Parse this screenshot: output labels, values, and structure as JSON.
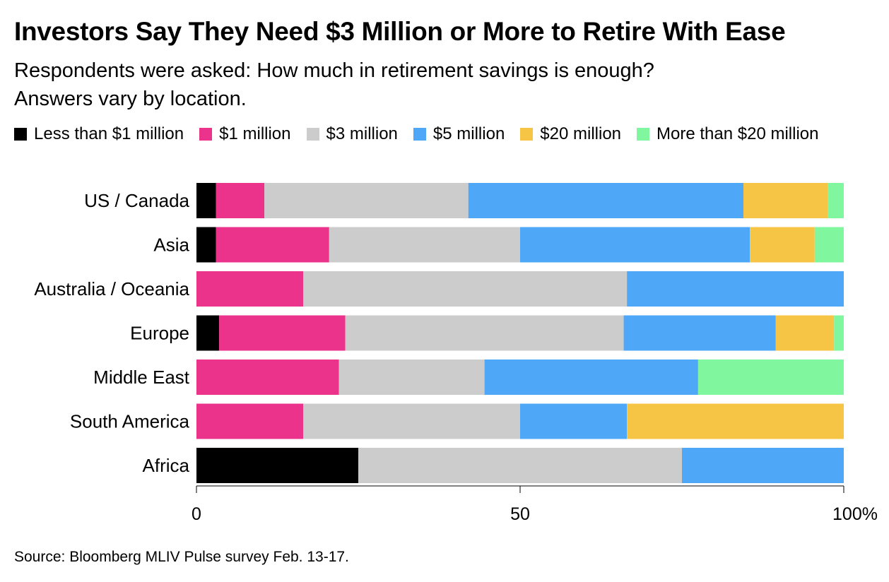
{
  "title": "Investors Say They Need $3 Million or More to Retire With Ease",
  "subtitle_line1": "Respondents were asked: How much in retirement savings is enough?",
  "subtitle_line2": "Answers vary by location.",
  "source": "Source: Bloomberg MLIV Pulse survey Feb. 13-17.",
  "chart_data": {
    "type": "bar",
    "orientation": "horizontal",
    "stacked": true,
    "categories": [
      "US / Canada",
      "Asia",
      "Australia / Oceania",
      "Europe",
      "Middle East",
      "South America",
      "Africa"
    ],
    "series": [
      {
        "name": "Less than $1 million",
        "color": "#000000",
        "values": [
          3,
          3,
          0,
          3.5,
          0,
          0,
          25
        ]
      },
      {
        "name": "$1 million",
        "color": "#EB338C",
        "values": [
          7.5,
          17.5,
          16.5,
          19.5,
          22,
          16.5,
          0
        ]
      },
      {
        "name": "$3 million",
        "color": "#CCCCCC",
        "values": [
          31.5,
          29.5,
          50,
          43,
          22.5,
          33.5,
          50
        ]
      },
      {
        "name": "$5 million",
        "color": "#4FA8F7",
        "values": [
          42.5,
          35.5,
          33.5,
          23.5,
          33,
          16.5,
          25
        ]
      },
      {
        "name": "$20 million",
        "color": "#F7C546",
        "values": [
          13,
          10,
          0,
          9,
          0,
          33.5,
          0
        ]
      },
      {
        "name": "More than $20 million",
        "color": "#80F79E",
        "values": [
          2.5,
          4.5,
          0,
          1.5,
          22.5,
          0,
          0
        ]
      }
    ],
    "xlim": [
      0,
      100
    ],
    "x_ticks": [
      {
        "value": 0,
        "label": "0"
      },
      {
        "value": 50,
        "label": "50"
      },
      {
        "value": 100,
        "label": "100%"
      }
    ],
    "legend_position": "top-left",
    "grid": false
  }
}
